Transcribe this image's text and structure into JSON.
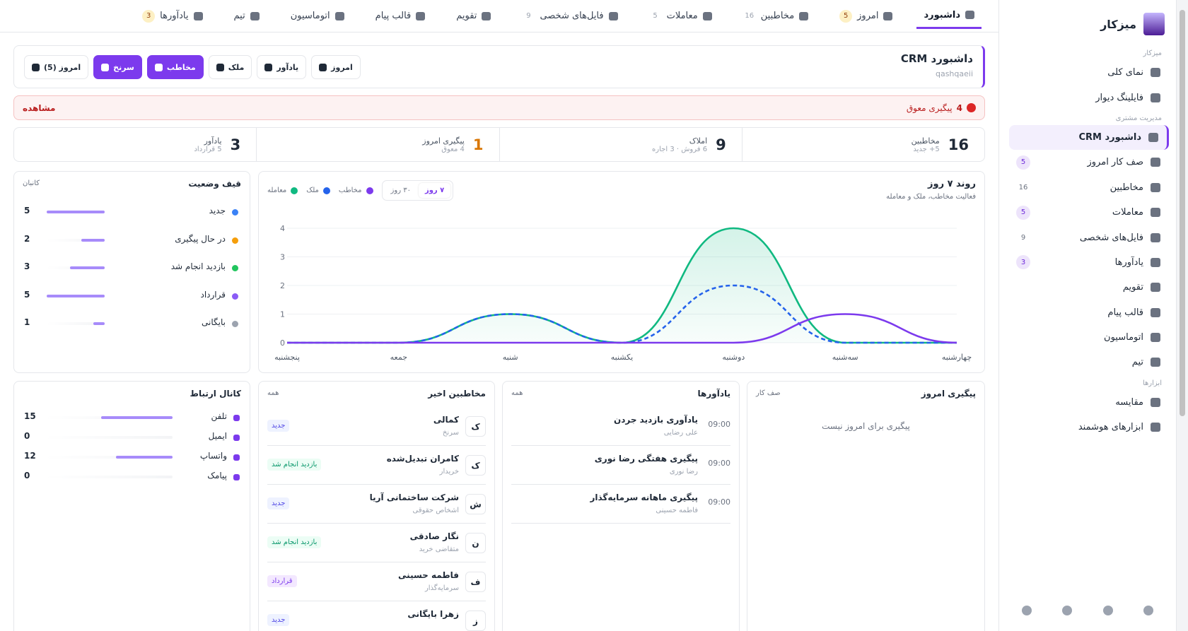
{
  "sidebar": {
    "brand": "میزکار",
    "sections": [
      {
        "title": "میزکار",
        "items": [
          {
            "label": "نمای کلی"
          },
          {
            "label": "فایلینگ دیوار"
          }
        ]
      },
      {
        "title": "مدیریت مشتری",
        "items": [
          {
            "label": "داشبورد CRM",
            "active": true
          },
          {
            "label": "صف کار امروز",
            "badge": 5,
            "badge_color": "#ede4fb"
          },
          {
            "label": "مخاطبین",
            "badge": 16
          },
          {
            "label": "معاملات",
            "badge": 5,
            "badge_color": "#ede4fb"
          },
          {
            "label": "فایل‌های شخصی",
            "badge": 9
          },
          {
            "label": "یادآورها",
            "badge": 3,
            "badge_color": "#ede4fb"
          },
          {
            "label": "تقویم"
          },
          {
            "label": "قالب پیام"
          },
          {
            "label": "اتوماسیون"
          },
          {
            "label": "تیم"
          }
        ]
      },
      {
        "title": "ابزارها",
        "items": [
          {
            "label": "مقایسه"
          },
          {
            "label": "ابزارهای هوشمند"
          }
        ]
      }
    ]
  },
  "tabs": [
    {
      "label": "داشبورد",
      "active": true
    },
    {
      "label": "امروز",
      "badge": 5,
      "badge_color": "#fdf0c4"
    },
    {
      "label": "مخاطبین",
      "badge": 16
    },
    {
      "label": "معاملات",
      "badge": 5
    },
    {
      "label": "فایل‌های شخصی",
      "badge": 9
    },
    {
      "label": "تقویم"
    },
    {
      "label": "قالب پیام"
    },
    {
      "label": "اتوماسیون"
    },
    {
      "label": "تیم"
    },
    {
      "label": "یادآورها",
      "badge": 3,
      "badge_color": "#fdf0c4"
    }
  ],
  "header": {
    "title": "داشبورد CRM",
    "subtitle": "qashqaeii",
    "buttons": [
      {
        "label": "امروز (5)"
      },
      {
        "label": "سرنخ",
        "primary": true
      },
      {
        "label": "مخاطب",
        "primary": true
      },
      {
        "label": "ملک"
      },
      {
        "label": "یادآور"
      },
      {
        "label": "امروز"
      }
    ]
  },
  "alert": {
    "count": 4,
    "label": "پیگیری معوق",
    "action": "مشاهده"
  },
  "stats": [
    {
      "value": 16,
      "label": "مخاطبین",
      "sub": "5+ جدید"
    },
    {
      "value": 9,
      "label": "املاک",
      "sub": "6 فروش · 3 اجاره"
    },
    {
      "value": 1,
      "label": "پیگیری امروز",
      "sub": "4 معوق",
      "color": "#d97706"
    },
    {
      "value": 3,
      "label": "یادآور",
      "sub": "5 قرارداد"
    }
  ],
  "chart_data": {
    "type": "line",
    "title": "روند ۷ روز",
    "subtitle": "فعالیت مخاطب، ملک و معامله",
    "ranges": [
      "۷ روز",
      "۳۰ روز"
    ],
    "categories": [
      "پنجشنبه",
      "جمعه",
      "شنبه",
      "یکشنبه",
      "دوشنبه",
      "سه‌شنبه",
      "چهارشنبه"
    ],
    "series": [
      {
        "name": "مخاطب",
        "color": "#7c3aed",
        "values": [
          0,
          0,
          0,
          0,
          0,
          1,
          0
        ]
      },
      {
        "name": "ملک",
        "color": "#2563eb",
        "dashed": true,
        "values": [
          0,
          0,
          1,
          0,
          2,
          0,
          0
        ]
      },
      {
        "name": "معامله",
        "color": "#10b981",
        "filled": true,
        "values": [
          0,
          0,
          1,
          0,
          4,
          0,
          0
        ]
      }
    ],
    "ylim": [
      0,
      4
    ],
    "yticks": [
      0,
      1,
      2,
      3,
      4
    ],
    "grid": true
  },
  "funnel": {
    "title": "قیف وضعیت",
    "link": "کانبان",
    "rows": [
      {
        "label": "جدید",
        "value": 5,
        "color": "#3b82f6"
      },
      {
        "label": "در حال پیگیری",
        "value": 2,
        "color": "#f59e0b"
      },
      {
        "label": "بازدید انجام شد",
        "value": 3,
        "color": "#22c55e"
      },
      {
        "label": "قرارداد",
        "value": 5,
        "color": "#8b5cf6"
      },
      {
        "label": "بایگانی",
        "value": 1,
        "color": "#9ca3af"
      }
    ]
  },
  "channels": {
    "title": "کانال ارتباط",
    "rows": [
      {
        "label": "تلفن",
        "value": 15
      },
      {
        "label": "ایمیل",
        "value": 0
      },
      {
        "label": "واتساپ",
        "value": 12
      },
      {
        "label": "پیامک",
        "value": 0
      }
    ]
  },
  "contacts": {
    "title": "مخاطبین اخیر",
    "link": "همه",
    "rows": [
      {
        "initial": "ک",
        "name": "کمالی",
        "type": "سرنخ",
        "status": "جدید",
        "color": "#4f46e5",
        "bg": "#eef2ff"
      },
      {
        "initial": "ک",
        "name": "کامران تبدیل‌شده",
        "type": "خریدار",
        "status": "بازدید انجام شد",
        "color": "#059669",
        "bg": "#ecfdf5"
      },
      {
        "initial": "ش",
        "name": "شرکت ساختمانی آریا",
        "type": "اشخاص حقوقی",
        "status": "جدید",
        "color": "#4f46e5",
        "bg": "#eef2ff"
      },
      {
        "initial": "ن",
        "name": "نگار صادقی",
        "type": "متقاضی خرید",
        "status": "بازدید انجام شد",
        "color": "#059669",
        "bg": "#ecfdf5"
      },
      {
        "initial": "ف",
        "name": "فاطمه حسینی",
        "type": "سرمایه‌گذار",
        "status": "قرارداد",
        "color": "#7c3aed",
        "bg": "#f3e8ff"
      },
      {
        "initial": "ز",
        "name": "زهرا بایگانی",
        "status": "جدید",
        "color": "#4f46e5",
        "bg": "#eef2ff"
      }
    ]
  },
  "reminders": {
    "title": "یادآورها",
    "link": "همه",
    "rows": [
      {
        "title": "یادآوری بازدید جردن",
        "person": "علی رضایی",
        "time": "09:00"
      },
      {
        "title": "پیگیری هفتگی رضا نوری",
        "person": "رضا نوری",
        "time": "09:00"
      },
      {
        "title": "پیگیری ماهانه سرمایه‌گذار",
        "person": "فاطمه حسینی",
        "time": "09:00"
      }
    ]
  },
  "followups": {
    "title": "پیگیری امروز",
    "link": "صف کار",
    "empty": "پیگیری برای امروز نیست"
  }
}
